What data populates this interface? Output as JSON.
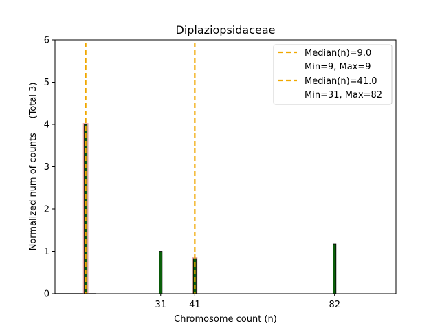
{
  "chart_data": {
    "type": "bar",
    "title": "Diplaziopsidaceae",
    "xlabel": "Chromosome count (n)",
    "ylabel": "Normalized num of counts     (Total 3)",
    "xlim": [
      0,
      100
    ],
    "ylim": [
      0,
      6
    ],
    "yticks": [
      0,
      1,
      2,
      3,
      4,
      5,
      6
    ],
    "xticks": [
      31,
      41,
      82
    ],
    "bars": [
      {
        "x": 9,
        "value": 4.0,
        "outlined": true
      },
      {
        "x": 31,
        "value": 1.0,
        "outlined": false
      },
      {
        "x": 41,
        "value": 0.83,
        "outlined": true
      },
      {
        "x": 82,
        "value": 1.17,
        "outlined": false
      }
    ],
    "baseline_span": [
      0,
      12
    ],
    "medians": [
      {
        "x": 9.0,
        "label": "Median(n)=9.0",
        "range_label": "Min=9, Max=9"
      },
      {
        "x": 41.0,
        "label": "Median(n)=41.0",
        "range_label": "Min=31, Max=82"
      }
    ],
    "colors": {
      "bar_fill": "#0a5f0a",
      "bar_edge": "#000000",
      "bar_outline": "#e8a0a0",
      "median_line": "#f0a800",
      "baseline": "#a0a0a0"
    }
  }
}
